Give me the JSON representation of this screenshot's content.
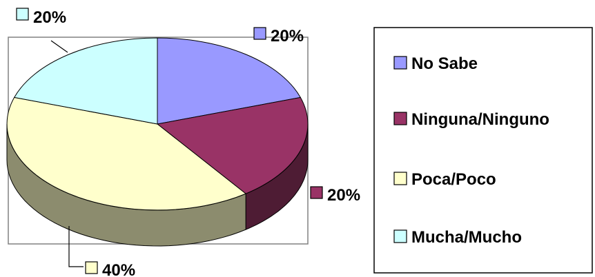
{
  "chart_data": {
    "type": "pie",
    "style": "3d",
    "title": "",
    "categories": [
      "No Sabe",
      "Ninguna/Ninguno",
      "Poca/Poco",
      "Mucha/Mucho"
    ],
    "values": [
      20,
      20,
      40,
      20
    ],
    "value_labels": [
      "20%",
      "20%",
      "40%",
      "20%"
    ],
    "colors": [
      "#9999FF",
      "#993366",
      "#FFFFCC",
      "#CCFFFF"
    ],
    "side_colors": [
      "#5C5C99",
      "#4E1C34",
      "#8C8C6E",
      "#7AA3A3"
    ],
    "legend": {
      "position": "right"
    }
  }
}
